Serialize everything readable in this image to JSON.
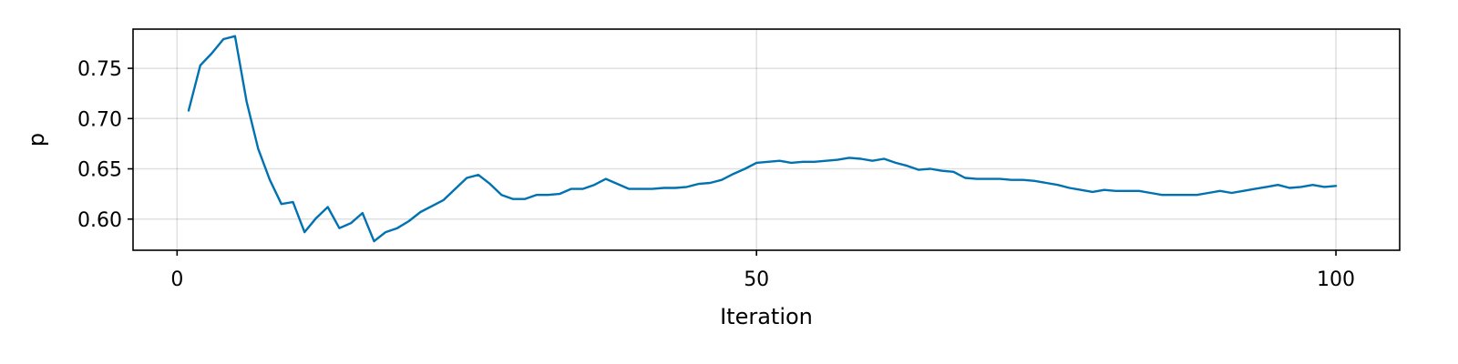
{
  "chart_data": {
    "type": "line",
    "title": "",
    "xlabel": "Iteration",
    "ylabel": "p",
    "xlim": [
      -3.8,
      105.5
    ],
    "ylim": [
      0.569,
      0.789
    ],
    "xticks": [
      0,
      50,
      100
    ],
    "xtick_labels": [
      "0",
      "50",
      "100"
    ],
    "yticks": [
      0.6,
      0.65,
      0.7,
      0.75
    ],
    "ytick_labels": [
      "0.60",
      "0.65",
      "0.70",
      "0.75"
    ],
    "grid": true,
    "legend": "none",
    "series": [
      {
        "color": "#0072b2",
        "x": [
          1,
          2,
          3,
          4,
          5,
          6,
          7,
          8,
          9,
          10,
          11,
          12,
          13,
          14,
          15,
          16,
          17,
          18,
          19,
          20,
          21,
          22,
          23,
          24,
          25,
          26,
          27,
          28,
          29,
          30,
          31,
          32,
          33,
          34,
          35,
          36,
          37,
          38,
          39,
          40,
          41,
          42,
          43,
          44,
          45,
          46,
          47,
          48,
          49,
          50,
          51,
          52,
          53,
          54,
          55,
          56,
          57,
          58,
          59,
          60,
          61,
          62,
          63,
          64,
          65,
          66,
          67,
          68,
          69,
          70,
          71,
          72,
          73,
          74,
          75,
          76,
          77,
          78,
          79,
          80,
          81,
          82,
          83,
          84,
          85,
          86,
          87,
          88,
          89,
          90,
          91,
          92,
          93,
          94,
          95,
          96,
          97,
          98,
          99,
          100
        ],
        "y": [
          0.708,
          0.753,
          0.765,
          0.779,
          0.782,
          0.717,
          0.67,
          0.639,
          0.615,
          0.617,
          0.587,
          0.601,
          0.612,
          0.591,
          0.596,
          0.606,
          0.578,
          0.587,
          0.591,
          0.598,
          0.607,
          0.613,
          0.619,
          0.63,
          0.641,
          0.644,
          0.635,
          0.624,
          0.62,
          0.62,
          0.624,
          0.624,
          0.625,
          0.63,
          0.63,
          0.634,
          0.64,
          0.635,
          0.63,
          0.63,
          0.63,
          0.631,
          0.631,
          0.632,
          0.635,
          0.636,
          0.639,
          0.645,
          0.65,
          0.656,
          0.657,
          0.658,
          0.656,
          0.657,
          0.657,
          0.658,
          0.659,
          0.661,
          0.66,
          0.658,
          0.66,
          0.656,
          0.653,
          0.649,
          0.65,
          0.648,
          0.647,
          0.641,
          0.64,
          0.64,
          0.64,
          0.639,
          0.639,
          0.638,
          0.636,
          0.634,
          0.631,
          0.629,
          0.627,
          0.629,
          0.628,
          0.628,
          0.628,
          0.626,
          0.624,
          0.624,
          0.624,
          0.624,
          0.626,
          0.628,
          0.626,
          0.628,
          0.63,
          0.632,
          0.634,
          0.631,
          0.632,
          0.634,
          0.632,
          0.633
        ]
      }
    ]
  }
}
